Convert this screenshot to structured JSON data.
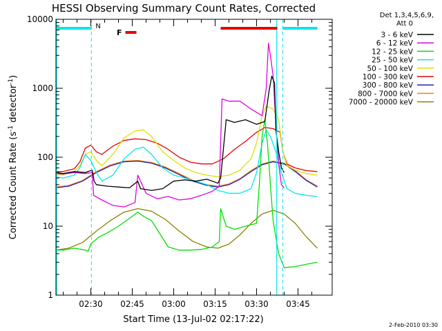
{
  "chart_data": {
    "type": "line",
    "title": "HESSI Observing Summary Count Rates, Corrected",
    "xlabel": "Start Time (13-Jul-02 02:17:22)",
    "ylabel_parts": [
      "Corrected Count Rate (s",
      "-1",
      " detector",
      "-1",
      ")"
    ],
    "y_scale": "log",
    "ylim": [
      1,
      10000
    ],
    "y_ticks": [
      {
        "value": 1,
        "label": "1"
      },
      {
        "value": 10,
        "label": "10"
      },
      {
        "value": 100,
        "label": "100"
      },
      {
        "value": 1000,
        "label": "1000"
      },
      {
        "value": 10000,
        "label": "10000"
      }
    ],
    "x_range_minutes": [
      17.37,
      85.5
    ],
    "x_ticks": [
      {
        "minute": 30,
        "label": "02:30"
      },
      {
        "minute": 45,
        "label": "02:45"
      },
      {
        "minute": 60,
        "label": "03:00"
      },
      {
        "minute": 75,
        "label": "03:15"
      },
      {
        "minute": 90,
        "label": "03:30"
      },
      {
        "minute": 105,
        "label": "03:45"
      }
    ],
    "legend_header": [
      "Det 1,3,4,5,6,9,",
      "Att 0"
    ],
    "legend_placement": "right",
    "series": [
      {
        "name": "3 - 6 keV",
        "color": "#000000",
        "points": [
          [
            17.4,
            60
          ],
          [
            20,
            58
          ],
          [
            24,
            62
          ],
          [
            28,
            60
          ],
          [
            30.5,
            65
          ],
          [
            31.2,
            45
          ],
          [
            32,
            40
          ],
          [
            36,
            38
          ],
          [
            40,
            37
          ],
          [
            44,
            36
          ],
          [
            47,
            45
          ],
          [
            48,
            35
          ],
          [
            52,
            33
          ],
          [
            56,
            35
          ],
          [
            60,
            45
          ],
          [
            64,
            47
          ],
          [
            68,
            45
          ],
          [
            72,
            48
          ],
          [
            76,
            42
          ],
          [
            77,
            50
          ],
          [
            79,
            350
          ],
          [
            82,
            320
          ],
          [
            86,
            350
          ],
          [
            90,
            300
          ],
          [
            93,
            330
          ],
          [
            94.5,
            900
          ],
          [
            95.5,
            1500
          ],
          [
            96.5,
            1200
          ],
          [
            97,
            250
          ],
          [
            98,
            120
          ],
          [
            99,
            70
          ],
          [
            100,
            60
          ]
        ]
      },
      {
        "name": "6 - 12 keV",
        "color": "#e000e0",
        "points": [
          [
            17.4,
            58
          ],
          [
            20,
            57
          ],
          [
            24,
            60
          ],
          [
            28,
            58
          ],
          [
            30.5,
            60
          ],
          [
            31,
            28
          ],
          [
            34,
            24
          ],
          [
            38,
            20
          ],
          [
            42,
            19
          ],
          [
            46,
            22
          ],
          [
            47,
            55
          ],
          [
            50,
            30
          ],
          [
            54,
            25
          ],
          [
            58,
            27
          ],
          [
            62,
            24
          ],
          [
            66,
            25
          ],
          [
            70,
            28
          ],
          [
            74,
            32
          ],
          [
            76.5,
            38
          ],
          [
            77.5,
            700
          ],
          [
            80,
            650
          ],
          [
            84,
            650
          ],
          [
            88,
            500
          ],
          [
            92,
            400
          ],
          [
            93.5,
            1000
          ],
          [
            94.3,
            4500
          ],
          [
            95,
            3000
          ],
          [
            96,
            1500
          ],
          [
            97,
            300
          ],
          [
            98,
            80
          ],
          [
            99,
            40
          ],
          [
            100,
            36
          ]
        ]
      },
      {
        "name": "12 - 25 keV",
        "color": "#00e000",
        "points": [
          [
            17.4,
            4.5
          ],
          [
            20,
            4.5
          ],
          [
            24,
            4.8
          ],
          [
            28,
            4.5
          ],
          [
            29,
            4.3
          ],
          [
            30,
            5.5
          ],
          [
            31,
            6
          ],
          [
            33,
            7
          ],
          [
            36,
            8
          ],
          [
            40,
            10
          ],
          [
            44,
            13
          ],
          [
            47,
            16
          ],
          [
            49,
            14
          ],
          [
            52,
            12
          ],
          [
            54,
            9
          ],
          [
            58,
            5
          ],
          [
            62,
            4.5
          ],
          [
            66,
            4.5
          ],
          [
            70,
            4.6
          ],
          [
            74,
            5
          ],
          [
            76.5,
            6
          ],
          [
            77,
            18
          ],
          [
            79,
            10
          ],
          [
            82,
            9
          ],
          [
            86,
            10
          ],
          [
            90,
            11
          ],
          [
            91,
            40
          ],
          [
            92,
            200
          ],
          [
            93,
            350
          ],
          [
            94,
            150
          ],
          [
            95,
            40
          ],
          [
            96,
            12
          ],
          [
            98,
            4
          ],
          [
            100,
            2.5
          ],
          [
            104,
            2.6
          ],
          [
            108,
            2.8
          ],
          [
            112,
            3
          ]
        ]
      },
      {
        "name": "25 - 50 keV",
        "color": "#00e8e8",
        "points": [
          [
            17.4,
            52
          ],
          [
            20,
            50
          ],
          [
            24,
            55
          ],
          [
            26,
            70
          ],
          [
            28,
            110
          ],
          [
            30,
            90
          ],
          [
            32,
            60
          ],
          [
            34,
            45
          ],
          [
            38,
            55
          ],
          [
            42,
            95
          ],
          [
            46,
            130
          ],
          [
            49,
            140
          ],
          [
            52,
            110
          ],
          [
            56,
            70
          ],
          [
            60,
            55
          ],
          [
            64,
            50
          ],
          [
            68,
            45
          ],
          [
            72,
            40
          ],
          [
            76,
            33
          ],
          [
            80,
            30
          ],
          [
            84,
            30
          ],
          [
            88,
            35
          ],
          [
            90,
            60
          ],
          [
            92,
            160
          ],
          [
            93.5,
            250
          ],
          [
            95,
            200
          ],
          [
            97,
            120
          ],
          [
            99,
            60
          ],
          [
            101,
            35
          ],
          [
            104,
            30
          ],
          [
            108,
            28
          ],
          [
            112,
            27
          ]
        ]
      },
      {
        "name": "50 - 100 keV",
        "color": "#e0e000",
        "points": [
          [
            17.4,
            55
          ],
          [
            20,
            56
          ],
          [
            24,
            62
          ],
          [
            26,
            75
          ],
          [
            28,
            110
          ],
          [
            30,
            120
          ],
          [
            32,
            90
          ],
          [
            34,
            75
          ],
          [
            38,
            110
          ],
          [
            42,
            190
          ],
          [
            46,
            240
          ],
          [
            49,
            250
          ],
          [
            52,
            200
          ],
          [
            56,
            120
          ],
          [
            60,
            90
          ],
          [
            64,
            70
          ],
          [
            68,
            60
          ],
          [
            72,
            55
          ],
          [
            76,
            52
          ],
          [
            80,
            55
          ],
          [
            84,
            65
          ],
          [
            88,
            95
          ],
          [
            90,
            160
          ],
          [
            92,
            400
          ],
          [
            93.5,
            550
          ],
          [
            96,
            500
          ],
          [
            98,
            350
          ],
          [
            99.5,
            120
          ],
          [
            101,
            75
          ],
          [
            104,
            65
          ],
          [
            108,
            58
          ],
          [
            112,
            55
          ]
        ]
      },
      {
        "name": "100 - 300 keV",
        "color": "#e80000",
        "points": [
          [
            17.4,
            62
          ],
          [
            20,
            62
          ],
          [
            24,
            68
          ],
          [
            26,
            85
          ],
          [
            28,
            135
          ],
          [
            30,
            150
          ],
          [
            32,
            120
          ],
          [
            34,
            110
          ],
          [
            38,
            145
          ],
          [
            42,
            175
          ],
          [
            46,
            185
          ],
          [
            50,
            180
          ],
          [
            54,
            160
          ],
          [
            58,
            130
          ],
          [
            62,
            100
          ],
          [
            66,
            85
          ],
          [
            70,
            80
          ],
          [
            74,
            80
          ],
          [
            78,
            95
          ],
          [
            82,
            130
          ],
          [
            86,
            170
          ],
          [
            90,
            230
          ],
          [
            93,
            270
          ],
          [
            96,
            260
          ],
          [
            98.5,
            230
          ],
          [
            99.5,
            120
          ],
          [
            101,
            80
          ],
          [
            104,
            70
          ],
          [
            108,
            64
          ],
          [
            112,
            62
          ]
        ]
      },
      {
        "name": "300 - 800 keV",
        "color": "#2020c0",
        "points": [
          [
            17.4,
            36
          ],
          [
            22,
            38
          ],
          [
            27,
            45
          ],
          [
            32,
            60
          ],
          [
            37,
            75
          ],
          [
            42,
            86
          ],
          [
            47,
            88
          ],
          [
            52,
            82
          ],
          [
            57,
            70
          ],
          [
            62,
            56
          ],
          [
            67,
            45
          ],
          [
            72,
            39
          ],
          [
            76,
            37
          ],
          [
            80,
            40
          ],
          [
            84,
            48
          ],
          [
            88,
            62
          ],
          [
            92,
            78
          ],
          [
            96,
            86
          ],
          [
            100,
            80
          ],
          [
            104,
            62
          ],
          [
            108,
            46
          ],
          [
            112,
            37
          ]
        ]
      },
      {
        "name": "800 - 7000 keV",
        "color": "#ff8000",
        "points": [
          [
            17.4,
            37
          ],
          [
            22,
            39
          ],
          [
            27,
            46
          ],
          [
            32,
            62
          ],
          [
            37,
            77
          ],
          [
            42,
            88
          ],
          [
            47,
            90
          ],
          [
            52,
            84
          ],
          [
            57,
            72
          ],
          [
            62,
            58
          ],
          [
            67,
            46
          ],
          [
            72,
            40
          ],
          [
            76,
            38
          ],
          [
            80,
            41
          ],
          [
            84,
            49
          ],
          [
            88,
            64
          ],
          [
            92,
            80
          ],
          [
            96,
            88
          ],
          [
            100,
            82
          ],
          [
            104,
            64
          ],
          [
            108,
            47
          ],
          [
            112,
            38
          ]
        ]
      },
      {
        "name": "7000 - 20000 keV",
        "color": "#8b8000",
        "points": [
          [
            17.4,
            4.5
          ],
          [
            22,
            4.8
          ],
          [
            27,
            5.8
          ],
          [
            32,
            8.5
          ],
          [
            37,
            12
          ],
          [
            42,
            16
          ],
          [
            47,
            18
          ],
          [
            52,
            16.5
          ],
          [
            57,
            12.5
          ],
          [
            62,
            8.5
          ],
          [
            67,
            6
          ],
          [
            72,
            5
          ],
          [
            76,
            4.8
          ],
          [
            80,
            5.5
          ],
          [
            84,
            7.5
          ],
          [
            88,
            11
          ],
          [
            92,
            15
          ],
          [
            96,
            17
          ],
          [
            100,
            15
          ],
          [
            104,
            11
          ],
          [
            108,
            7
          ],
          [
            112,
            4.8
          ]
        ]
      }
    ],
    "orbit_bars": [
      {
        "label": "",
        "color": "#00e8e8",
        "start": 17.4,
        "end": 30.2,
        "level": "top"
      },
      {
        "label": "",
        "color": "#00e8e8",
        "start": 99.5,
        "end": 112,
        "level": "top"
      },
      {
        "label": "F",
        "color": "#e80000",
        "start": 42.5,
        "end": 46.5,
        "level": "flag"
      },
      {
        "label": "",
        "color": "#e80000",
        "start": 77,
        "end": 97.5,
        "level": "top"
      }
    ],
    "night_label": "N",
    "night_lines": [
      30.2,
      99.5
    ],
    "attenuator_line": 97.3,
    "footer_date": "2-Feb-2010 03:30"
  }
}
